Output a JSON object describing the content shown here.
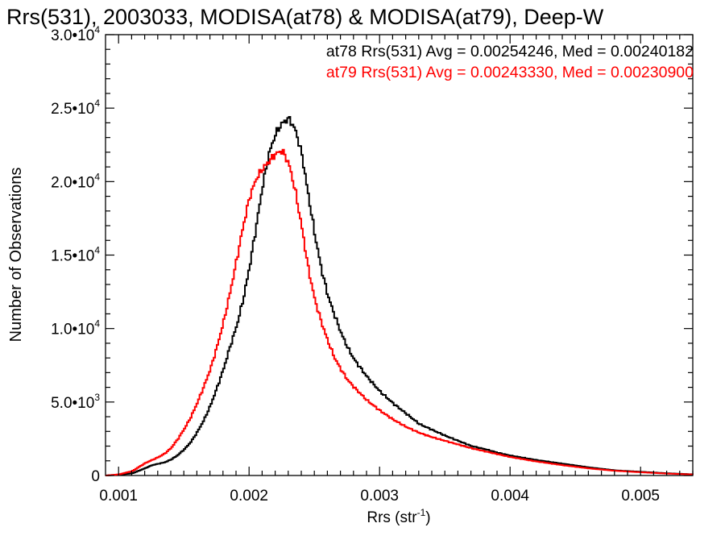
{
  "chart_data": {
    "type": "line",
    "title": "Rrs(531), 2003033, MODISA(at78) & MODISA(at79), Deep-W",
    "xlabel": "Rrs (str",
    "xlabel_sup": "-1",
    "xlabel_close": ")",
    "ylabel": "Number of Observations",
    "xlim": [
      0.0009,
      0.0054
    ],
    "ylim": [
      0,
      30000
    ],
    "x_ticks": [
      {
        "value": 0.001,
        "label": "0.001"
      },
      {
        "value": 0.002,
        "label": "0.002"
      },
      {
        "value": 0.003,
        "label": "0.003"
      },
      {
        "value": 0.004,
        "label": "0.004"
      },
      {
        "value": 0.005,
        "label": "0.005"
      }
    ],
    "y_ticks": [
      {
        "value": 0,
        "mant": "0",
        "exp": ""
      },
      {
        "value": 5000,
        "mant": "5.0•10",
        "exp": "3"
      },
      {
        "value": 10000,
        "mant": "1.0•10",
        "exp": "4"
      },
      {
        "value": 15000,
        "mant": "1.5•10",
        "exp": "4"
      },
      {
        "value": 20000,
        "mant": "2.0•10",
        "exp": "4"
      },
      {
        "value": 25000,
        "mant": "2.5•10",
        "exp": "4"
      },
      {
        "value": 30000,
        "mant": "3.0•10",
        "exp": "4"
      }
    ],
    "grid": false,
    "annotations": [
      {
        "text": "at78 Rrs(531) Avg = 0.00254246, Med = 0.00240182",
        "color": "#000000"
      },
      {
        "text": "at79 Rrs(531) Avg = 0.00243330, Med = 0.00230900",
        "color": "#ff0000"
      }
    ],
    "series": [
      {
        "color": "#000000",
        "x": [
          0.0009,
          0.001,
          0.0011,
          0.0012,
          0.00125,
          0.0013,
          0.00135,
          0.0014,
          0.00145,
          0.0015,
          0.00155,
          0.0016,
          0.00165,
          0.0017,
          0.00175,
          0.0018,
          0.00185,
          0.0019,
          0.00195,
          0.002,
          0.00205,
          0.0021,
          0.00215,
          0.0022,
          0.00225,
          0.0023,
          0.00235,
          0.0024,
          0.00245,
          0.0025,
          0.00255,
          0.0026,
          0.00265,
          0.0027,
          0.00275,
          0.0028,
          0.0029,
          0.003,
          0.0031,
          0.0032,
          0.0033,
          0.0034,
          0.0035,
          0.0036,
          0.0037,
          0.0038,
          0.0039,
          0.004,
          0.0042,
          0.0044,
          0.0046,
          0.0048,
          0.005,
          0.0052,
          0.0054
        ],
        "y": [
          0,
          50,
          150,
          500,
          700,
          800,
          900,
          1100,
          1400,
          1800,
          2300,
          3000,
          3800,
          4800,
          6000,
          7300,
          8800,
          10200,
          12000,
          14300,
          17000,
          19800,
          22000,
          23300,
          24000,
          24300,
          23500,
          21800,
          19000,
          16300,
          14000,
          12200,
          10900,
          9700,
          8700,
          7900,
          6700,
          5700,
          4900,
          4200,
          3500,
          3100,
          2700,
          2350,
          2000,
          1800,
          1550,
          1350,
          1050,
          800,
          550,
          350,
          250,
          150,
          80
        ]
      },
      {
        "color": "#ff0000",
        "x": [
          0.0009,
          0.001,
          0.0011,
          0.0012,
          0.00125,
          0.0013,
          0.00135,
          0.0014,
          0.00145,
          0.0015,
          0.00155,
          0.0016,
          0.00165,
          0.0017,
          0.00175,
          0.0018,
          0.00185,
          0.0019,
          0.00195,
          0.002,
          0.00205,
          0.0021,
          0.00215,
          0.0022,
          0.00225,
          0.0023,
          0.00235,
          0.0024,
          0.00245,
          0.0025,
          0.00255,
          0.0026,
          0.00265,
          0.0027,
          0.00275,
          0.0028,
          0.0029,
          0.003,
          0.0031,
          0.0032,
          0.0033,
          0.0034,
          0.0035,
          0.0036,
          0.0037,
          0.0038,
          0.0039,
          0.004,
          0.0042,
          0.0044,
          0.0046,
          0.0048,
          0.005,
          0.0052,
          0.0054
        ],
        "y": [
          0,
          80,
          300,
          850,
          1050,
          1250,
          1500,
          1900,
          2500,
          3200,
          4000,
          5000,
          6100,
          7300,
          8800,
          10500,
          12500,
          14700,
          17000,
          19000,
          20200,
          20900,
          21400,
          21900,
          22100,
          21200,
          19300,
          16800,
          14000,
          11900,
          10400,
          9100,
          8000,
          7200,
          6500,
          6000,
          5100,
          4400,
          3800,
          3300,
          2900,
          2600,
          2350,
          2100,
          1850,
          1650,
          1450,
          1250,
          950,
          700,
          480,
          320,
          220,
          130,
          70
        ]
      }
    ]
  }
}
